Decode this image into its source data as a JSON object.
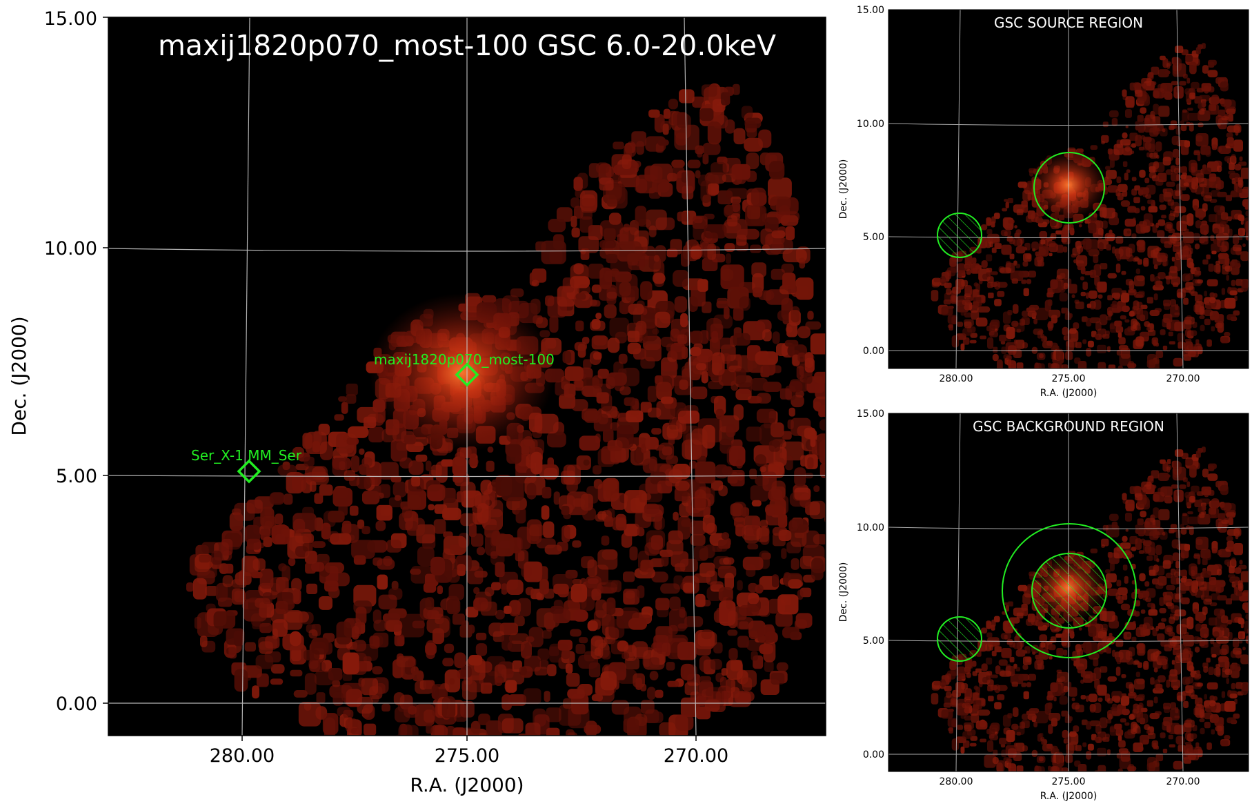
{
  "main_panel": {
    "title": "maxij1820p070_most-100 GSC 6.0-20.0keV",
    "xlabel": "R.A. (J2000)",
    "ylabel": "Dec. (J2000)",
    "x_ticks": [
      "280.00",
      "275.00",
      "270.00"
    ],
    "y_ticks": [
      "15.00",
      "10.00",
      "5.00",
      "0.00"
    ],
    "sources": [
      {
        "label": "maxij1820p070_most-100",
        "ra": 275.0,
        "dec": 7.2
      },
      {
        "label": "Ser_X-1 MM_Ser",
        "ra": 279.8,
        "dec": 5.05
      }
    ]
  },
  "source_panel": {
    "title": "GSC SOURCE REGION",
    "xlabel": "R.A. (J2000)",
    "ylabel": "Dec. (J2000)",
    "x_ticks": [
      "280.00",
      "275.00",
      "270.00"
    ],
    "y_ticks": [
      "15.00",
      "10.00",
      "5.00",
      "0.00"
    ]
  },
  "background_panel": {
    "title": "GSC BACKGROUND REGION",
    "xlabel": "R.A. (J2000)",
    "ylabel": "Dec. (J2000)",
    "x_ticks": [
      "280.00",
      "275.00",
      "270.00"
    ],
    "y_ticks": [
      "15.00",
      "10.00",
      "5.00",
      "0.00"
    ]
  },
  "colors": {
    "image_background": "#000000",
    "emission": "#8b1a0a",
    "emission_bright": "#ff6a2a",
    "region": "#22ee22",
    "grid": "#bbbbbb"
  }
}
